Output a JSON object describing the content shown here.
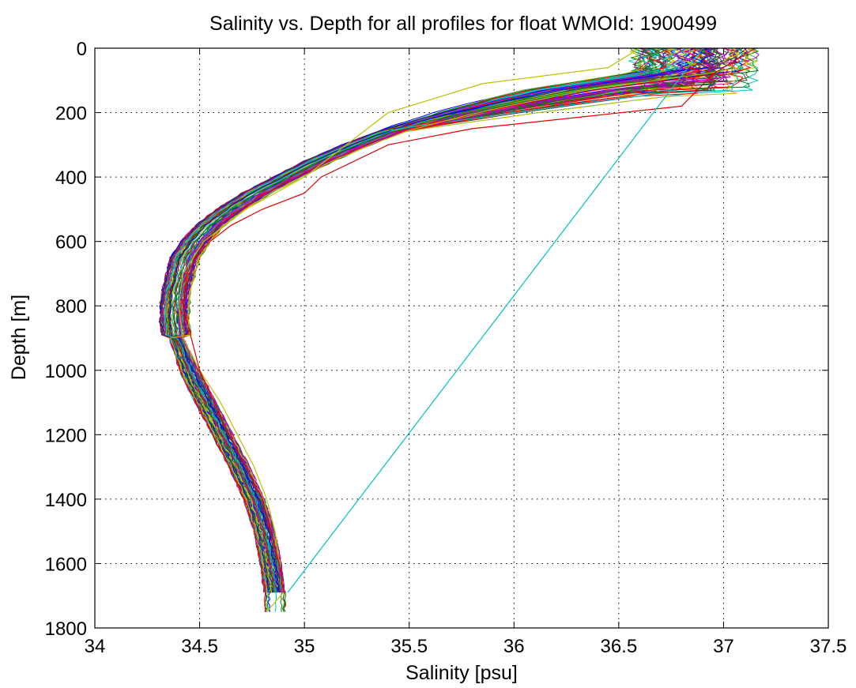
{
  "chart_data": {
    "type": "line",
    "title": "Salinity vs. Depth for all profiles for float WMOId: 1900499",
    "xlabel": "Salinity [psu]",
    "ylabel": "Depth [m]",
    "xlim": [
      34,
      37.5
    ],
    "ylim": [
      0,
      1800
    ],
    "y_inverted": true,
    "grid": true,
    "x_ticks": [
      "34",
      "34.5",
      "35",
      "35.5",
      "36",
      "36.5",
      "37",
      "37.5"
    ],
    "y_ticks": [
      "0",
      "200",
      "400",
      "600",
      "800",
      "1000",
      "1200",
      "1400",
      "1600",
      "1800"
    ],
    "series_count": 90,
    "base_profile": {
      "depth": [
        0,
        30,
        60,
        80,
        100,
        130,
        160,
        200,
        250,
        300,
        350,
        400,
        450,
        500,
        550,
        600,
        650,
        700,
        750,
        800,
        850,
        900,
        1000,
        1100,
        1200,
        1300,
        1400,
        1500,
        1600,
        1690
      ],
      "salinity": [
        36.85,
        36.85,
        36.8,
        36.65,
        36.45,
        36.15,
        35.95,
        35.7,
        35.45,
        35.25,
        35.07,
        34.92,
        34.77,
        34.65,
        34.55,
        34.48,
        34.43,
        34.41,
        34.39,
        34.38,
        34.38,
        34.39,
        34.45,
        34.53,
        34.61,
        34.69,
        34.76,
        34.81,
        34.84,
        34.86
      ]
    },
    "outlier_profiles": [
      {
        "color": "#c0c000",
        "depth": [
          0,
          60,
          110,
          200,
          300,
          400,
          500,
          600,
          700,
          800,
          900,
          1000,
          1100,
          1200,
          1300,
          1400,
          1500,
          1600,
          1690,
          1750
        ],
        "salinity": [
          36.6,
          36.45,
          35.85,
          35.4,
          35.2,
          35.0,
          34.72,
          34.52,
          34.42,
          34.4,
          34.42,
          34.5,
          34.6,
          34.68,
          34.76,
          34.82,
          34.86,
          34.88,
          34.9,
          34.82
        ]
      },
      {
        "color": "#e00000",
        "depth": [
          0,
          80,
          180,
          250,
          300,
          400,
          450,
          500,
          550,
          600,
          650,
          700,
          800,
          1000,
          1200,
          1400,
          1600,
          1690
        ],
        "salinity": [
          37.15,
          36.95,
          36.8,
          35.8,
          35.4,
          35.08,
          35.0,
          34.8,
          34.65,
          34.55,
          34.48,
          34.44,
          34.42,
          34.5,
          34.64,
          34.8,
          34.88,
          34.9
        ]
      },
      {
        "color": "#00c0c0",
        "depth": [
          0,
          1690
        ],
        "salinity": [
          36.9,
          34.92
        ]
      }
    ],
    "palette": [
      "#0000ff",
      "#008000",
      "#ff0000",
      "#00bfbf",
      "#bf00bf",
      "#bfbf00",
      "#404040"
    ]
  }
}
